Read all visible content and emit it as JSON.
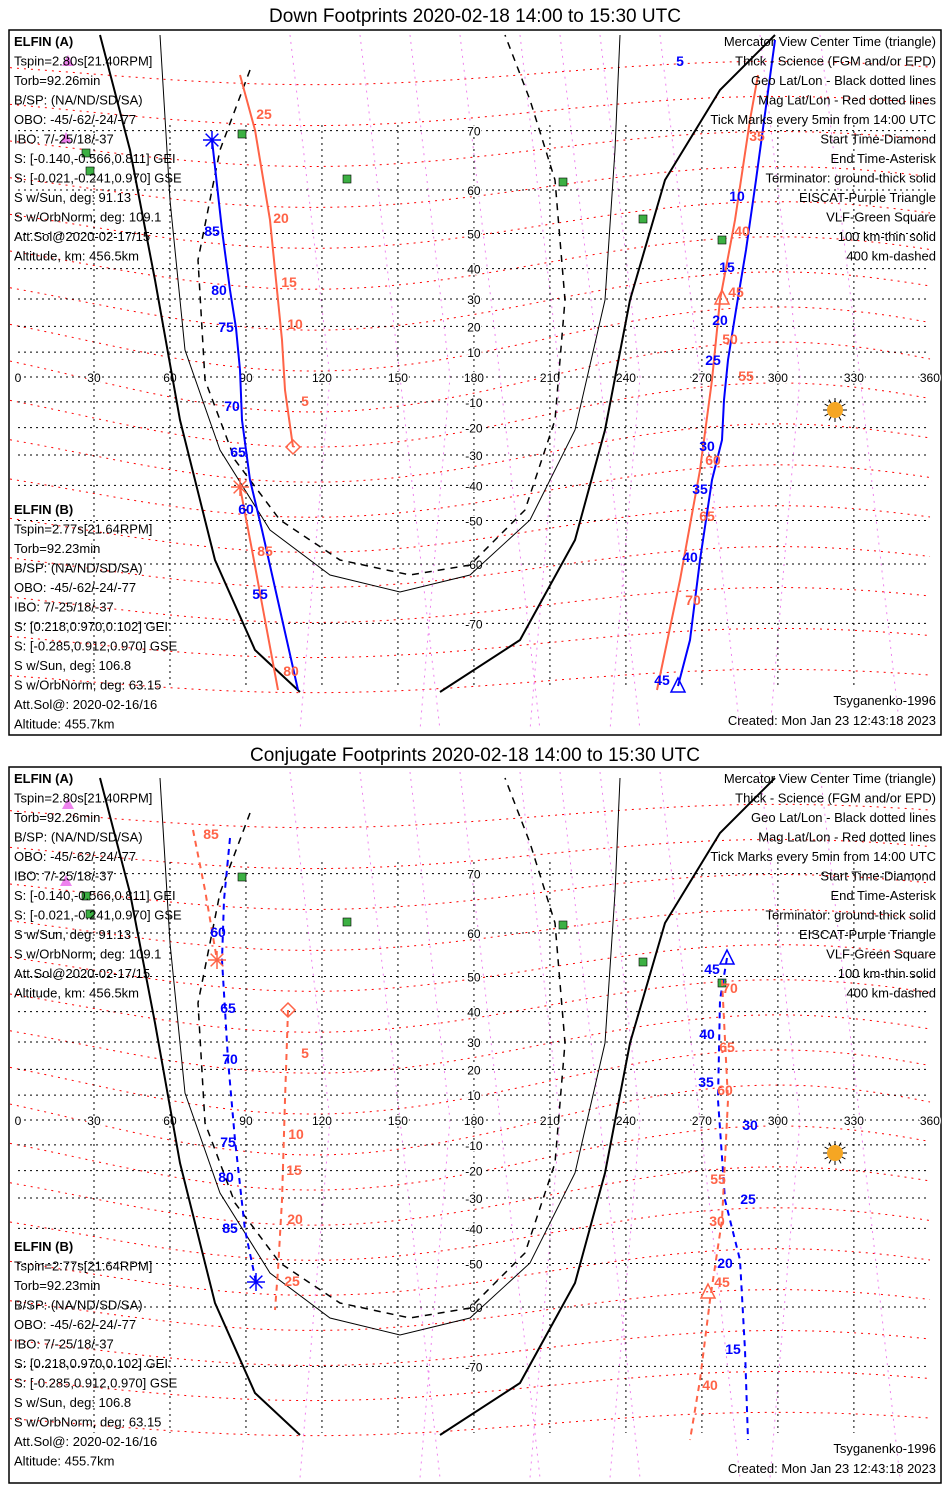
{
  "panels": [
    {
      "title": "Down Footprints 2020-02-18 14:00 to 15:30 UTC",
      "mode": "down"
    },
    {
      "title": "Conjugate Footprints 2020-02-18 14:00 to 15:30 UTC",
      "mode": "conjugate"
    }
  ],
  "elfin_a": {
    "name": "ELFIN (A)",
    "lines": [
      "Tspin=2.80s[21.40RPM]",
      "Torb=92.26min",
      "B/SP: (NA/ND/SD/SA)",
      "OBO: -45/-62/-24/-77",
      "IBO: 7/-25/18/-37",
      "S: [-0.140,-0.566,0.811] GEI",
      "S: [-0.021,-0.241,0.970] GSE",
      "S w/Sun, deg: 91.13",
      "S w/OrbNorm, deg: 109.1",
      "Att.Sol@2020-02-17/15",
      "Altitude, km: 456.5km"
    ]
  },
  "elfin_b": {
    "name": "ELFIN (B)",
    "lines": [
      "Tspin=2.77s[21.64RPM]",
      "Torb=92.23min",
      "B/SP: (NA/ND/SD/SA)",
      "OBO: -45/-62/-24/-77",
      "IBO: 7/-25/18/-37",
      "S: [0.218,0.970,0.102] GEI",
      "S: [-0.285,0.912,0.970] GSE",
      "S w/Sun, deg: 106.8",
      "S w/OrbNorm, deg: 63.15",
      "Att.Sol@: 2020-02-16/16",
      "Altitude: 455.7km"
    ]
  },
  "legend": [
    {
      "text": "Mercator View Center Time (triangle)",
      "color": "#000000"
    },
    {
      "text": "Thick - Science (FGM and/or EPD)",
      "color": "#000000"
    },
    {
      "text": "Geo Lat/Lon - Black dotted lines",
      "color": "#000000"
    },
    {
      "text": "Mag Lat/Lon - Red dotted lines",
      "color": "#ff0000"
    },
    {
      "text": "Tick Marks every 5min from 14:00 UTC",
      "color": "#000000"
    },
    {
      "text": "Start Time-Diamond",
      "color": "#000000"
    },
    {
      "text": "End Time-Asterisk",
      "color": "#000000"
    },
    {
      "text": "Terminator: ground-thick solid",
      "color": "#000000"
    },
    {
      "text": "EISCAT-Purple Triangle",
      "color": "#ee82ee"
    },
    {
      "text": "VLF-Green Square",
      "color": "#3cb043"
    },
    {
      "text": "100 km-thin solid",
      "color": "#000000"
    },
    {
      "text": "400 km-dashed",
      "color": "#000000"
    }
  ],
  "footer": {
    "model": "Tsyganenko-1996",
    "created": "Created: Mon Jan 23 12:43:18 2023"
  },
  "axes": {
    "lon_labels": [
      "0",
      "30",
      "60",
      "90",
      "120",
      "150",
      "180",
      "210",
      "240",
      "270",
      "300",
      "330",
      "360"
    ],
    "lat_labels": [
      "70",
      "60",
      "50",
      "40",
      "30",
      "20",
      "10",
      "-10",
      "-20",
      "-30",
      "-40",
      "-50",
      "-60",
      "-70"
    ]
  },
  "tick_labels": {
    "down_a": [
      "5",
      "10",
      "15",
      "20",
      "25",
      "30",
      "35",
      "40",
      "45",
      "85",
      "80",
      "75",
      "70",
      "65",
      "60",
      "55"
    ],
    "down_b": [
      "25",
      "20",
      "15",
      "10",
      "5",
      "35",
      "40",
      "45",
      "50",
      "55",
      "60",
      "65",
      "70",
      "85",
      "80"
    ],
    "conj_a": [
      "60",
      "65",
      "70",
      "75",
      "80",
      "85",
      "45",
      "40",
      "35",
      "30",
      "25",
      "20",
      "15"
    ],
    "conj_b": [
      "85",
      "5",
      "10",
      "15",
      "20",
      "25",
      "70",
      "65",
      "60",
      "55",
      "30",
      "45",
      "40"
    ]
  },
  "colors": {
    "elfin_a": "#0000ff",
    "elfin_b": "#ff6347",
    "mag_grid": "#ff0000",
    "eiscat": "#ee82ee",
    "vlf": "#3cb043",
    "sun": "#f5a623"
  }
}
